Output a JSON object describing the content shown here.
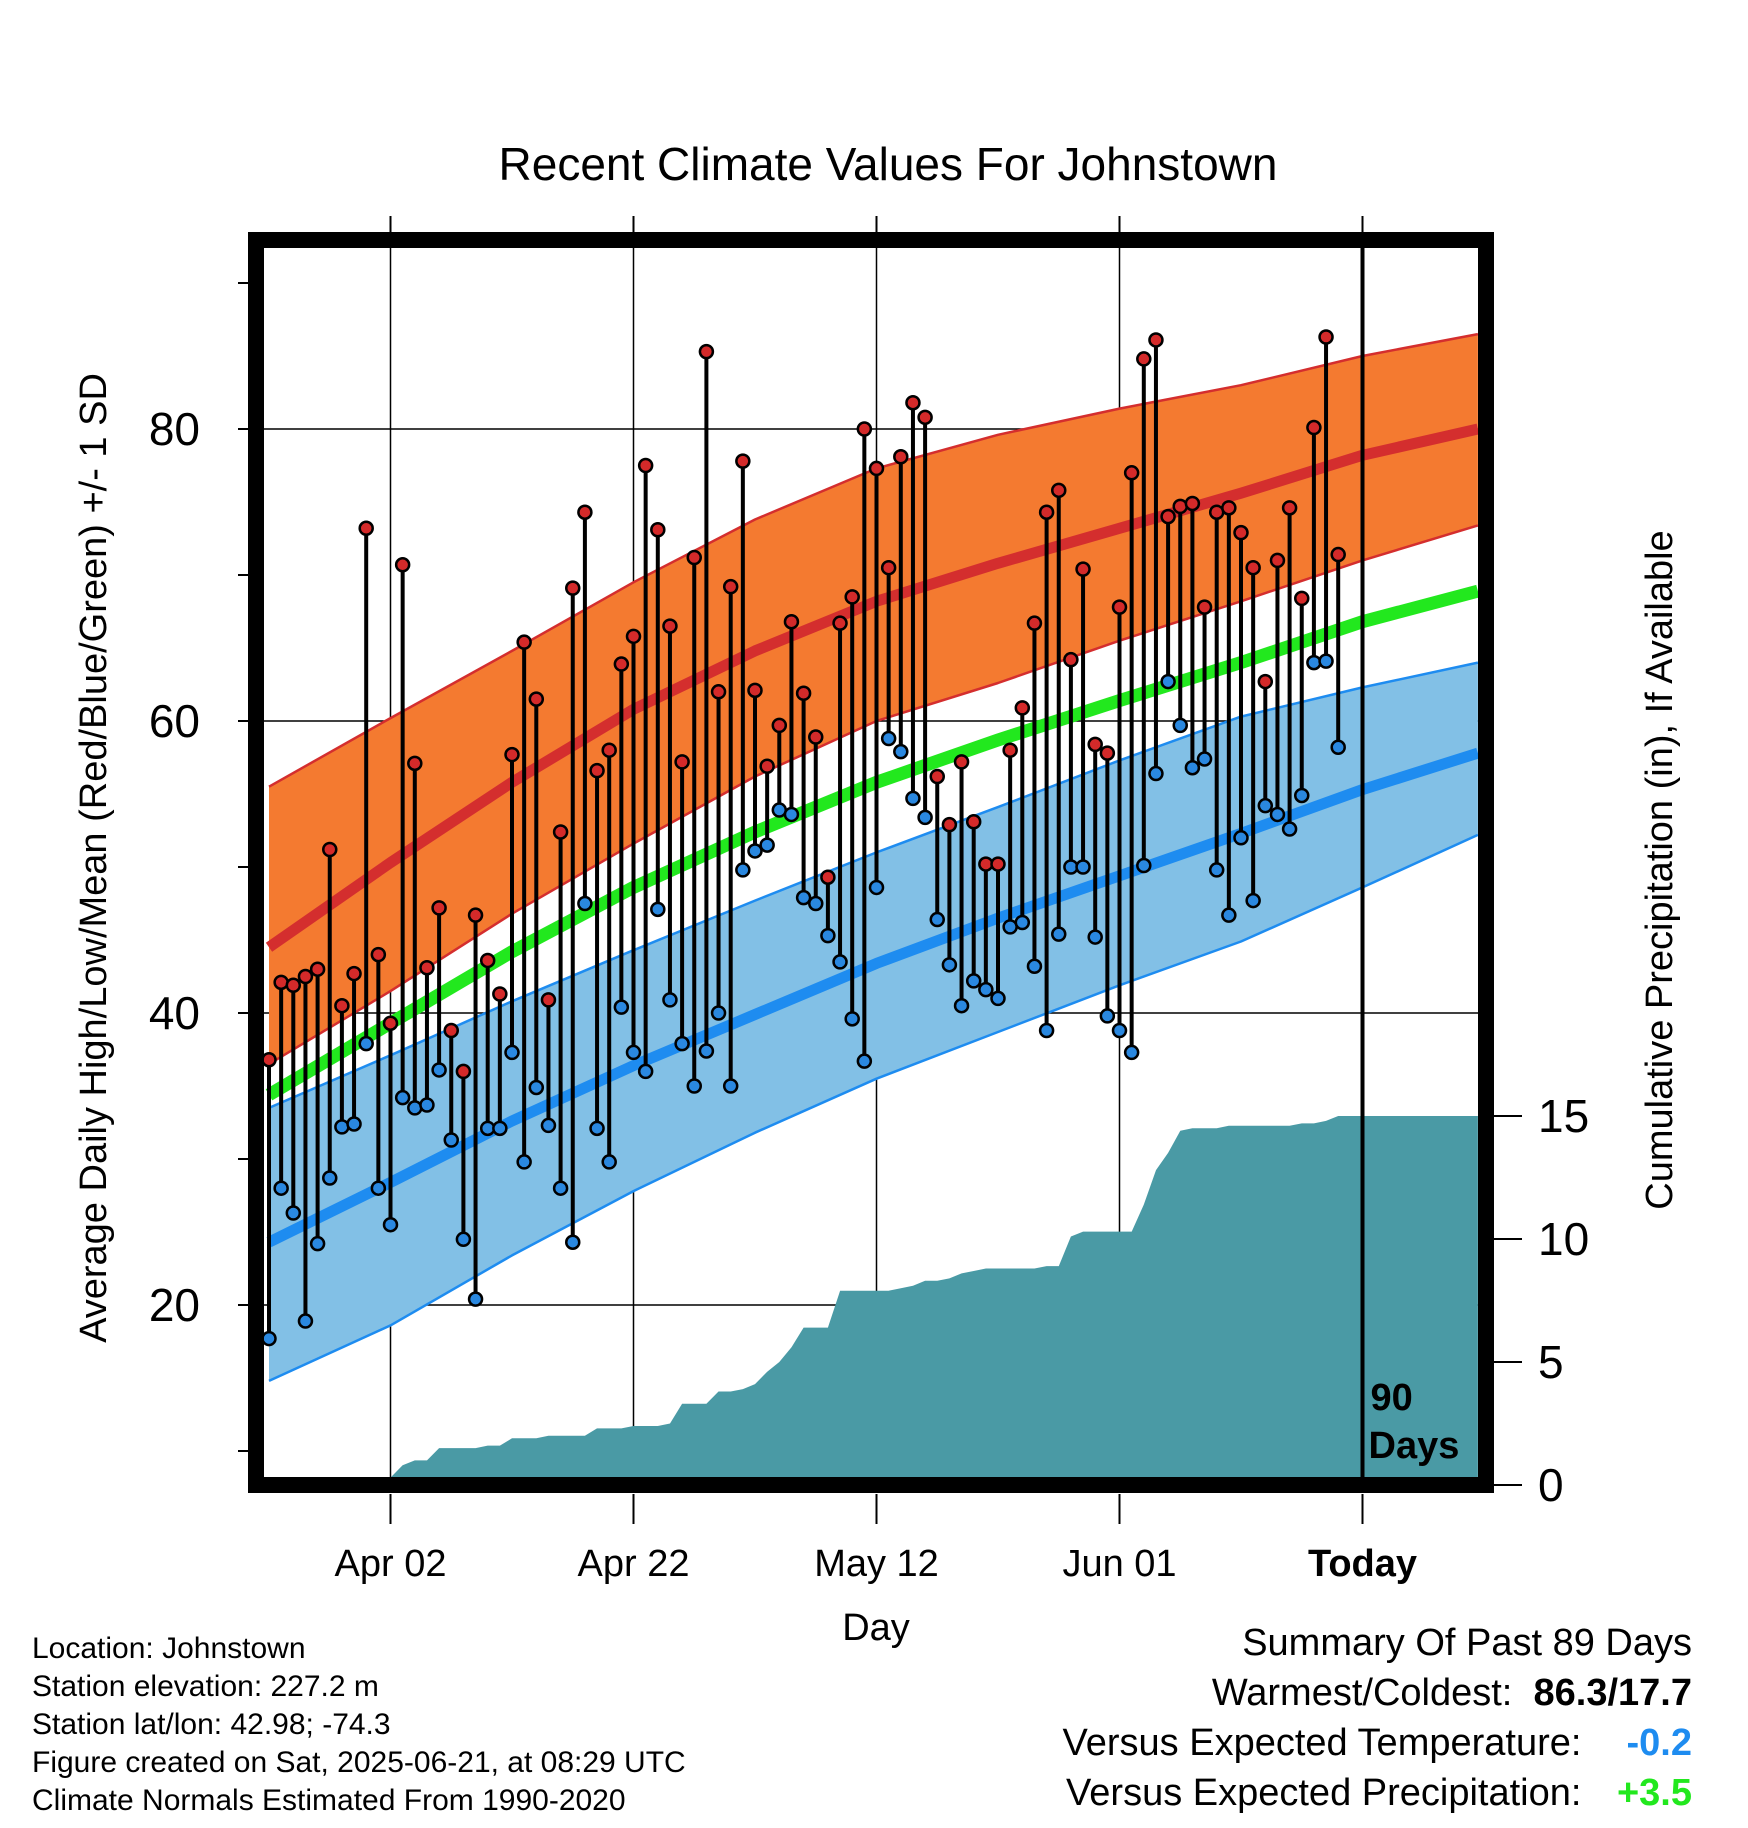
{
  "chart_data": {
    "type": "line",
    "title": "Recent Climate Values For Johnstown",
    "xlabel": "Day",
    "ylabel": "Average Daily High/Low/Mean (Red/Blue/Green) +/- 1 SD",
    "y2label": "Cumulative Precipitation (in), If Available",
    "ylim": [
      8.5,
      91.5
    ],
    "y_ticks": [
      "20",
      "40",
      "60",
      "80"
    ],
    "y2lim": [
      0,
      30
    ],
    "y2_ticks": [
      "0",
      "5",
      "10",
      "15"
    ],
    "xlim": [
      0,
      100
    ],
    "x_ticks": [
      {
        "day": 10,
        "label": "Apr 02"
      },
      {
        "day": 30,
        "label": "Apr 22"
      },
      {
        "day": 50,
        "label": "May 12"
      },
      {
        "day": 70,
        "label": "Jun 01"
      },
      {
        "day": 90,
        "label": "Today"
      }
    ],
    "today_marker": {
      "day": 90,
      "label_line1": "90",
      "label_line2": "Days"
    },
    "grid": true,
    "colors": {
      "high_band": "#f47a30",
      "high_mean": "#d42e2e",
      "high_edge": "#d42e2e",
      "low_band": "#82c0e6",
      "low_mean": "#1e8cf0",
      "low_edge": "#1e8cf0",
      "mean": "#22e81e",
      "precip": "#4a9aa5",
      "high_dot": "#d42a2a",
      "low_dot": "#2a88e0"
    },
    "normals": {
      "days": [
        0,
        10,
        20,
        30,
        40,
        50,
        60,
        70,
        80,
        90,
        99.5
      ],
      "high_mean": [
        44.5,
        50.3,
        55.8,
        60.8,
        64.8,
        68.2,
        70.8,
        73.2,
        75.6,
        78.2,
        80.0
      ],
      "high_sd_upper": [
        55.5,
        60.2,
        64.8,
        69.5,
        73.8,
        77.3,
        79.6,
        81.4,
        83.0,
        85.0,
        86.5
      ],
      "high_sd_lower": [
        36.5,
        41.5,
        46.8,
        51.6,
        56.2,
        60.0,
        62.6,
        65.5,
        68.2,
        71.0,
        73.4
      ],
      "low_mean": [
        24.3,
        28.4,
        32.6,
        36.4,
        39.9,
        43.4,
        46.5,
        49.4,
        52.3,
        55.3,
        57.8
      ],
      "low_sd_upper": [
        33.5,
        37.1,
        40.8,
        44.3,
        47.7,
        51.0,
        54.1,
        57.3,
        60.3,
        62.3,
        64.0
      ],
      "low_sd_lower": [
        14.8,
        18.6,
        23.4,
        27.8,
        31.8,
        35.5,
        38.7,
        41.9,
        44.9,
        48.6,
        52.2
      ],
      "mean": [
        34.4,
        39.3,
        44.2,
        48.6,
        52.4,
        55.8,
        58.7,
        61.4,
        64.0,
        66.8,
        68.9
      ]
    },
    "series": [
      {
        "name": "Daily High",
        "values": [
          36.8,
          42.1,
          41.9,
          42.5,
          43.0,
          51.2,
          40.5,
          42.7,
          73.2,
          44.0,
          39.3,
          70.7,
          57.1,
          43.1,
          47.2,
          38.8,
          36.0,
          46.7,
          43.6,
          41.3,
          57.7,
          65.4,
          61.5,
          40.9,
          52.4,
          69.1,
          74.3,
          56.6,
          58.0,
          63.9,
          65.8,
          77.5,
          73.1,
          66.5,
          57.2,
          71.2,
          85.3,
          62.0,
          69.2,
          77.8,
          62.1,
          56.9,
          59.7,
          66.8,
          61.9,
          58.9,
          49.3,
          66.7,
          68.5,
          80.0,
          77.3,
          70.5,
          78.1,
          81.8,
          80.8,
          56.2,
          52.9,
          57.2,
          53.1,
          50.2,
          50.2,
          58.0,
          60.9,
          66.7,
          74.3,
          75.8,
          64.2,
          70.4,
          58.4,
          57.8,
          67.8,
          77.0,
          84.8,
          86.1,
          74.0,
          74.7,
          74.9,
          67.8,
          74.3,
          74.6,
          72.9,
          70.5,
          62.7,
          71.0,
          74.6,
          68.4,
          80.1,
          86.3,
          71.4
        ]
      },
      {
        "name": "Daily Low",
        "values": [
          17.7,
          28.0,
          26.3,
          18.9,
          24.2,
          28.7,
          32.2,
          32.4,
          37.9,
          28.0,
          25.5,
          34.2,
          33.5,
          33.7,
          36.1,
          31.3,
          24.5,
          20.4,
          32.1,
          32.1,
          37.3,
          29.8,
          34.9,
          32.3,
          28.0,
          24.3,
          47.5,
          32.1,
          29.8,
          40.4,
          37.3,
          36.0,
          47.1,
          40.9,
          37.9,
          35.0,
          37.4,
          40.0,
          35.0,
          49.8,
          51.1,
          51.5,
          53.9,
          53.6,
          47.9,
          47.5,
          45.3,
          43.5,
          39.6,
          36.7,
          48.6,
          58.8,
          57.9,
          54.7,
          53.4,
          46.4,
          43.3,
          40.5,
          42.2,
          41.6,
          41.0,
          45.9,
          46.2,
          43.2,
          38.8,
          45.4,
          50.0,
          50.0,
          45.2,
          39.8,
          38.8,
          37.3,
          50.1,
          56.4,
          62.7,
          59.7,
          56.8,
          57.4,
          49.8,
          46.7,
          52.0,
          47.7,
          54.2,
          53.6,
          52.6,
          54.9,
          64.0,
          64.1,
          58.2
        ]
      },
      {
        "name": "Cumulative Precipitation",
        "days": [
          6,
          7,
          8,
          9,
          10,
          11,
          12,
          13,
          14,
          15,
          16,
          17,
          18,
          19,
          20,
          21,
          22,
          23,
          24,
          25,
          26,
          27,
          28,
          29,
          30,
          31,
          32,
          33,
          34,
          35,
          36,
          37,
          38,
          39,
          40,
          41,
          42,
          43,
          44,
          45,
          46,
          47,
          48,
          49,
          50,
          51,
          52,
          53,
          54,
          55,
          56,
          57,
          58,
          59,
          60,
          61,
          62,
          63,
          64,
          65,
          66,
          67,
          68,
          69,
          70,
          71,
          72,
          73,
          74,
          75,
          76,
          77,
          78,
          79,
          80,
          81,
          82,
          83,
          84,
          85,
          86,
          87,
          88,
          89,
          90,
          99.5
        ],
        "values": [
          0.0,
          0.2,
          0.2,
          0.2,
          0.3,
          0.8,
          1.0,
          1.0,
          1.5,
          1.5,
          1.5,
          1.5,
          1.6,
          1.6,
          1.9,
          1.9,
          1.9,
          2.0,
          2.0,
          2.0,
          2.0,
          2.3,
          2.3,
          2.3,
          2.4,
          2.4,
          2.4,
          2.5,
          3.3,
          3.3,
          3.3,
          3.8,
          3.8,
          3.9,
          4.1,
          4.6,
          5.0,
          5.6,
          6.4,
          6.4,
          6.4,
          7.9,
          7.9,
          7.9,
          7.9,
          7.9,
          8.0,
          8.1,
          8.3,
          8.3,
          8.4,
          8.6,
          8.7,
          8.8,
          8.8,
          8.8,
          8.8,
          8.8,
          8.9,
          8.9,
          10.1,
          10.3,
          10.3,
          10.3,
          10.3,
          10.3,
          11.4,
          12.8,
          13.5,
          14.4,
          14.5,
          14.5,
          14.5,
          14.6,
          14.6,
          14.6,
          14.6,
          14.6,
          14.6,
          14.7,
          14.7,
          14.8,
          15.0,
          15.0,
          15.0,
          15.0
        ]
      }
    ]
  },
  "footer": {
    "location": "Location: Johnstown",
    "elevation": "Station elevation: 227.2 m",
    "latlon": "Station lat/lon: 42.98; -74.3",
    "created": "Figure created on Sat, 2025-06-21, at 08:29 UTC",
    "normals": "Climate Normals Estimated From 1990-2020"
  },
  "summary": {
    "heading": "Summary Of Past 89 Days",
    "warm_cold_label": "Warmest/Coldest:",
    "warmest": "86.3",
    "sep": "/",
    "coldest": "17.7",
    "temp_label": "Versus Expected Temperature:",
    "temp_value": "-0.2",
    "temp_color": "#1e8cf0",
    "precip_label": "Versus Expected Precipitation:",
    "precip_value": "+3.5",
    "precip_color": "#22e81e"
  }
}
